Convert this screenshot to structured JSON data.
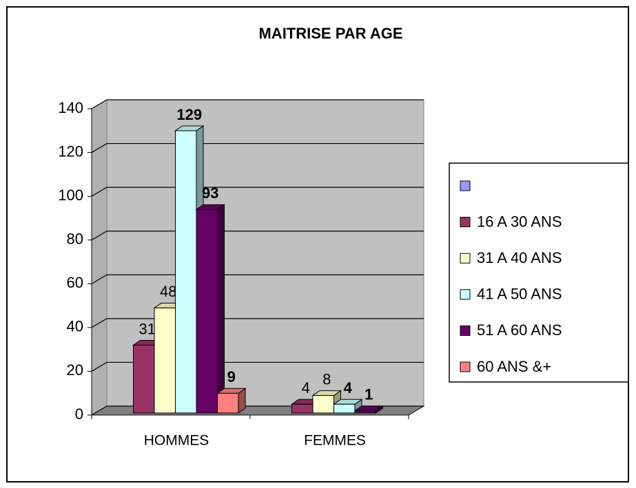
{
  "chart_data": {
    "type": "bar3d",
    "title": "MAITRISE PAR AGE",
    "categories": [
      "HOMMES",
      "FEMMES"
    ],
    "series": [
      {
        "color": "#9999ff",
        "values": [
          null,
          null
        ]
      },
      {
        "name": "16 A 30 ANS",
        "color": "#993366",
        "values": [
          31,
          4
        ]
      },
      {
        "name": "31 A 40 ANS",
        "color": "#ffffcc",
        "values": [
          48,
          8
        ]
      },
      {
        "name": "41 A 50 ANS",
        "color": "#ccffff",
        "values": [
          129,
          4
        ]
      },
      {
        "name": "51 A 60 ANS",
        "color": "#660066",
        "values": [
          93,
          1
        ]
      },
      {
        "name": "60 ANS &+",
        "color": "#ff8080",
        "values": [
          9,
          null
        ]
      }
    ],
    "ylim": [
      0,
      140
    ],
    "yticks": [
      0,
      20,
      40,
      60,
      80,
      100,
      120,
      140
    ],
    "grid": true,
    "legend": "right"
  }
}
